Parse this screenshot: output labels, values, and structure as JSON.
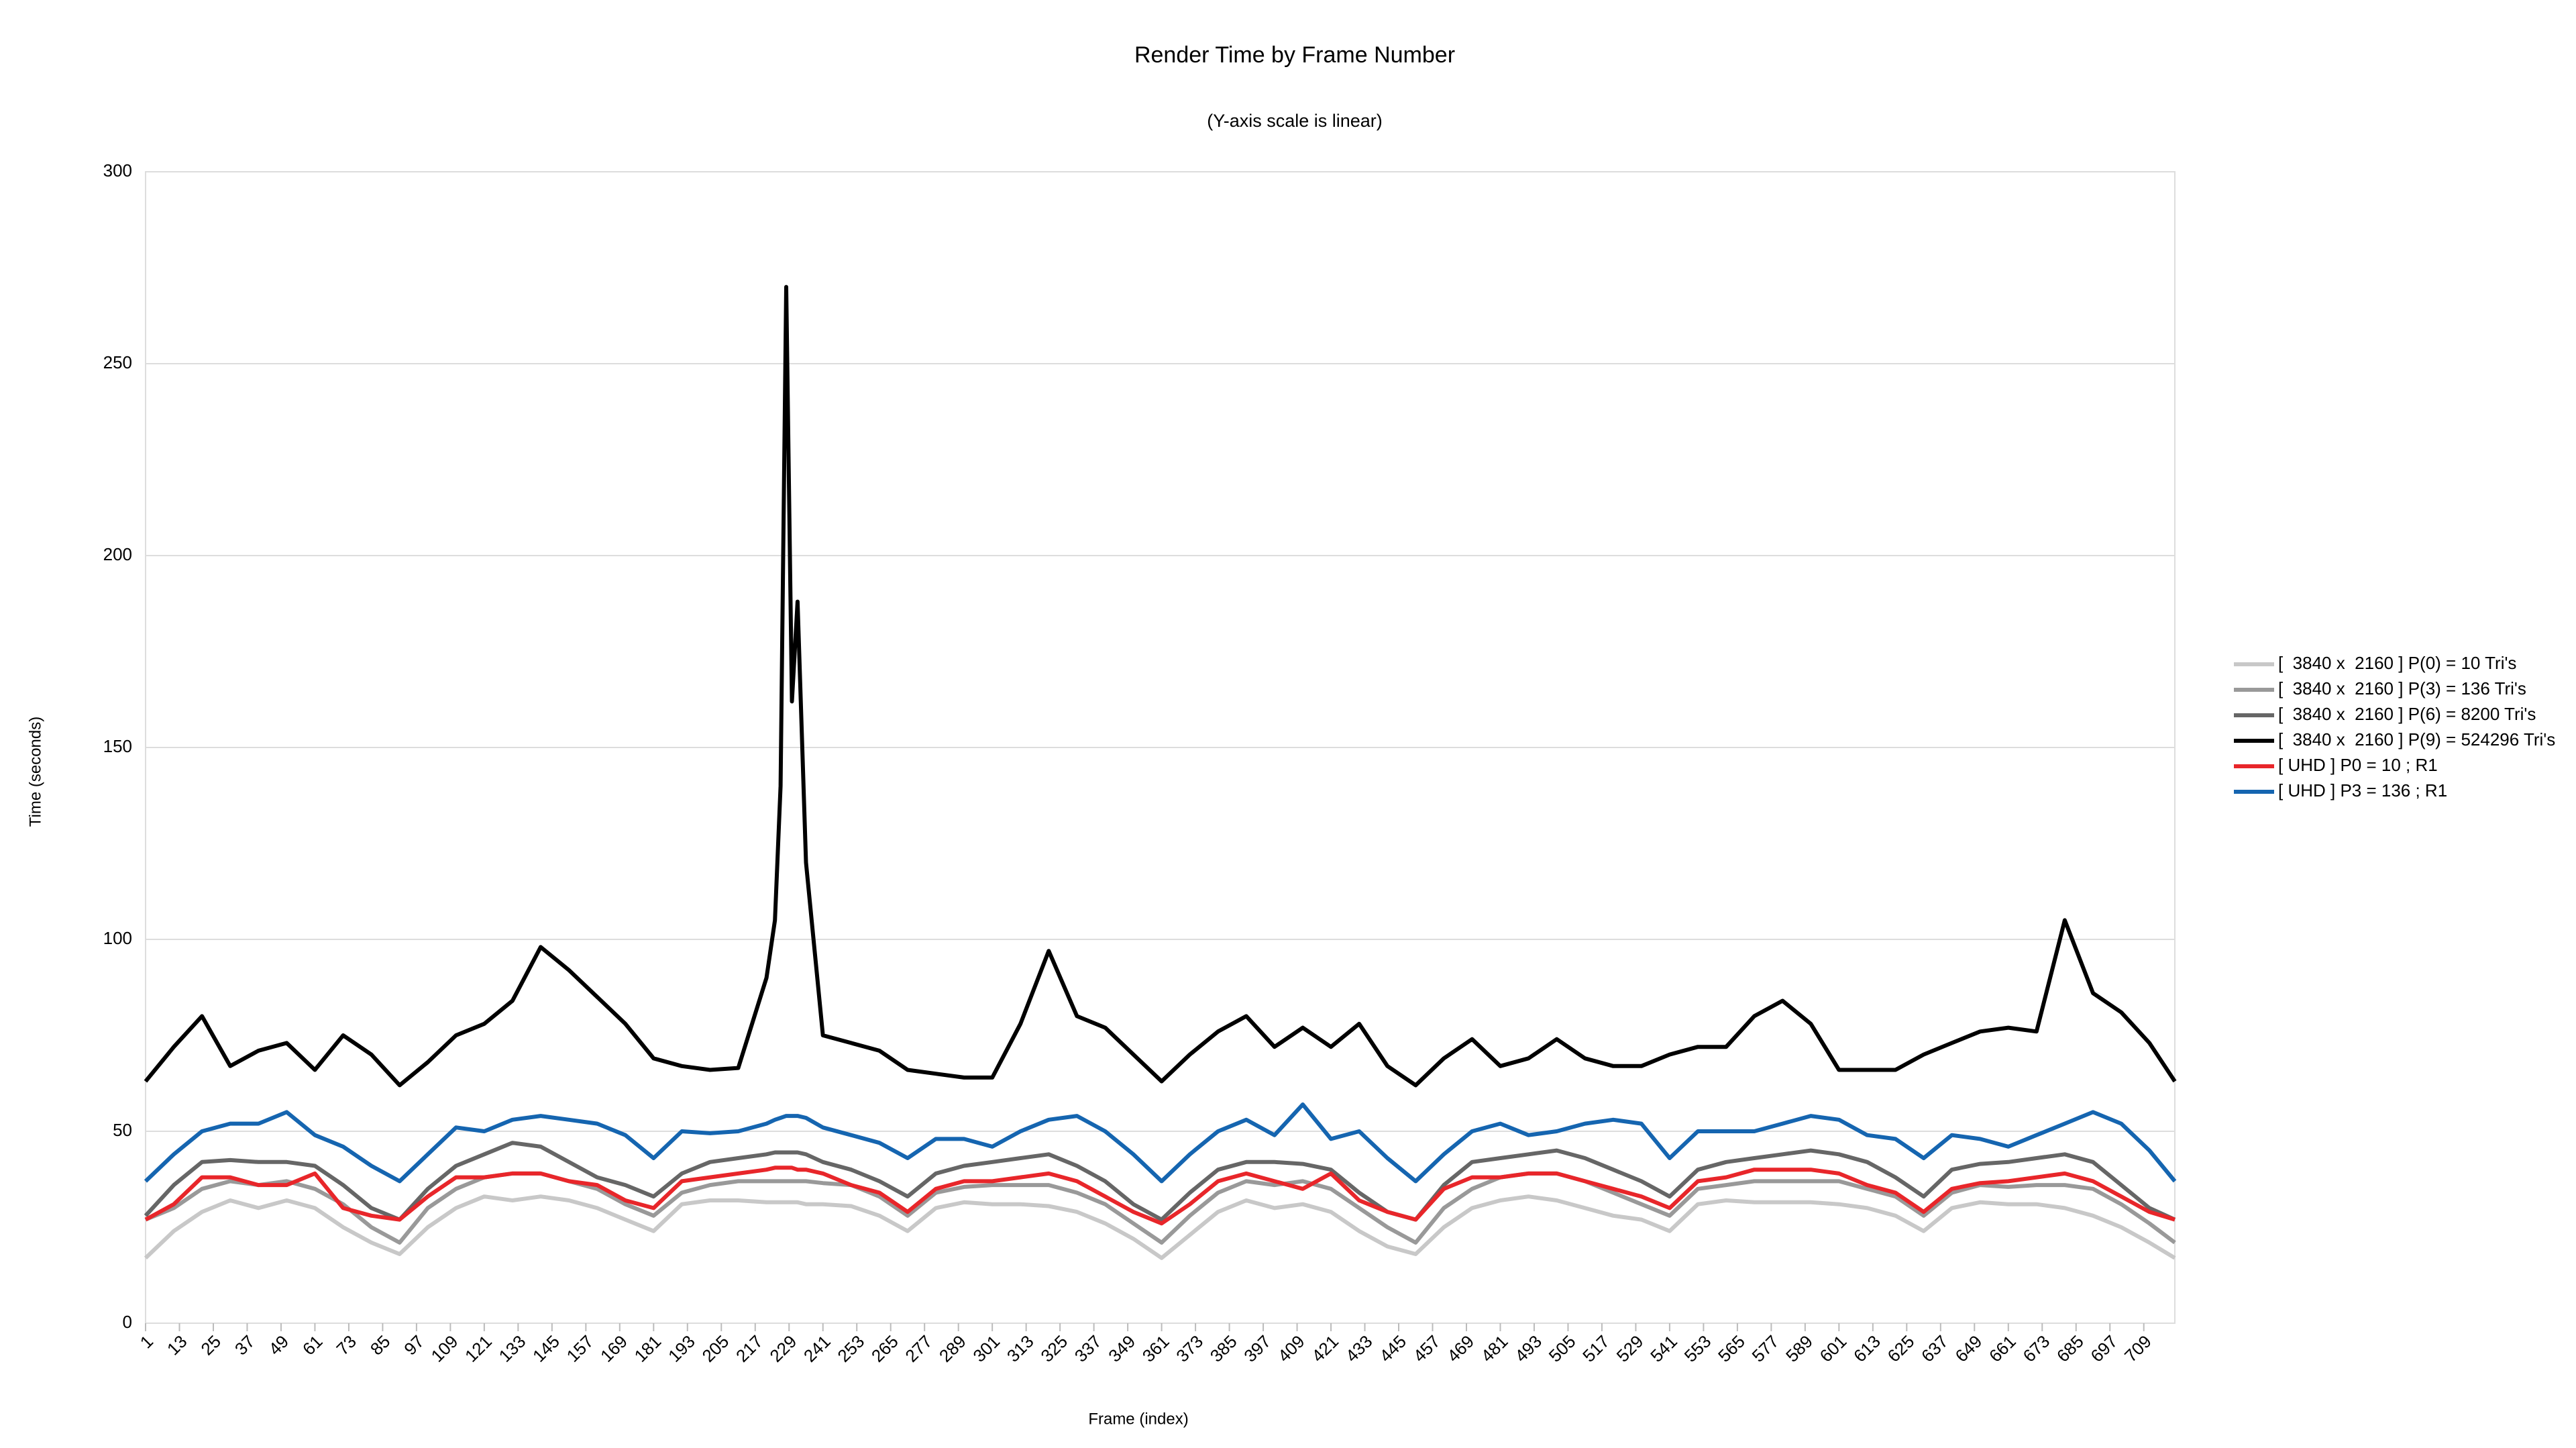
{
  "chart_data": {
    "type": "line",
    "title": "Render Time by Frame Number",
    "subtitle": "(Y-axis scale is linear)",
    "x_label": "Frame (index)",
    "y_label": "Time (seconds)",
    "grid": true,
    "legend": "right",
    "xlim": [
      1,
      720
    ],
    "ylim": [
      0,
      300
    ],
    "yticks": [
      0,
      50,
      100,
      150,
      200,
      250,
      300
    ],
    "xticks": [
      1,
      13,
      25,
      37,
      49,
      61,
      73,
      85,
      97,
      109,
      121,
      133,
      145,
      157,
      169,
      181,
      193,
      205,
      217,
      229,
      241,
      253,
      265,
      277,
      289,
      301,
      313,
      325,
      337,
      349,
      361,
      373,
      385,
      397,
      409,
      421,
      433,
      445,
      457,
      469,
      481,
      493,
      505,
      517,
      529,
      541,
      553,
      565,
      577,
      589,
      601,
      613,
      625,
      637,
      649,
      661,
      673,
      685,
      697,
      709
    ],
    "x": [
      1,
      11,
      21,
      31,
      41,
      51,
      61,
      71,
      81,
      91,
      101,
      111,
      121,
      131,
      141,
      151,
      161,
      171,
      181,
      191,
      201,
      211,
      221,
      224,
      226,
      228,
      230,
      232,
      235,
      241,
      251,
      261,
      271,
      281,
      291,
      301,
      311,
      321,
      331,
      341,
      351,
      361,
      371,
      381,
      391,
      401,
      411,
      421,
      431,
      441,
      451,
      461,
      471,
      481,
      491,
      501,
      511,
      521,
      531,
      541,
      551,
      561,
      571,
      581,
      591,
      601,
      611,
      621,
      631,
      641,
      651,
      661,
      671,
      681,
      691,
      701,
      711,
      720
    ],
    "series": [
      {
        "name": "[  3840 x  2160 ] P(0) = 10 Tri's",
        "color": "#c8c8c8",
        "values": [
          17,
          24,
          29,
          32,
          30,
          32,
          30,
          25,
          21,
          18,
          25,
          30,
          33,
          32,
          33,
          32,
          30,
          27,
          24,
          31,
          32,
          32,
          31.5,
          31.5,
          31.5,
          31.5,
          31.5,
          31.5,
          31,
          31,
          30.5,
          28,
          24,
          30,
          31.5,
          31,
          31,
          30.5,
          29,
          26,
          22,
          17,
          23,
          29,
          32,
          30,
          31,
          29,
          24,
          20,
          18,
          25,
          30,
          32,
          33,
          32,
          30,
          28,
          27,
          24,
          31,
          32,
          31.5,
          31.5,
          31.5,
          31,
          30,
          28,
          24,
          30,
          31.5,
          31,
          31,
          30,
          28,
          25,
          21,
          17
        ]
      },
      {
        "name": "[  3840 x  2160 ] P(3) = 136 Tri's",
        "color": "#999999",
        "values": [
          27,
          30,
          35,
          37,
          36,
          37,
          35,
          31,
          25,
          21,
          30,
          35,
          38,
          39,
          39,
          37,
          35,
          31,
          28,
          34,
          36,
          37,
          37,
          37,
          37,
          37,
          37,
          37,
          37,
          36.5,
          36,
          33,
          28,
          34,
          35.5,
          36,
          36,
          36,
          34,
          31,
          26,
          21,
          28,
          34,
          37,
          36,
          37,
          35,
          30,
          25,
          21,
          30,
          35,
          38,
          39,
          39,
          37,
          34,
          31,
          28,
          35,
          36,
          37,
          37,
          37,
          37,
          35,
          33,
          28,
          34,
          36,
          35.5,
          36,
          36,
          35,
          31,
          26,
          21
        ]
      },
      {
        "name": "[  3840 x  2160 ] P(6) = 8200 Tri's",
        "color": "#666666",
        "values": [
          28,
          36,
          42,
          42.5,
          42,
          42,
          41,
          36,
          30,
          27,
          35,
          41,
          44,
          47,
          46,
          42,
          38,
          36,
          33,
          39,
          42,
          43,
          44,
          44.5,
          44.5,
          44.5,
          44.5,
          44.5,
          44,
          42,
          40,
          37,
          33,
          39,
          41,
          42,
          43,
          44,
          41,
          37,
          31,
          27,
          34,
          40,
          42,
          42,
          41.5,
          40,
          34,
          29,
          27,
          36,
          42,
          43,
          44,
          45,
          43,
          40,
          37,
          33,
          40,
          42,
          43,
          44,
          45,
          44,
          42,
          38,
          33,
          40,
          41.5,
          42,
          43,
          44,
          42,
          36,
          30,
          27
        ]
      },
      {
        "name": "[  3840 x  2160 ] P(9) = 524296 Tri's",
        "color": "#000000",
        "values": [
          63,
          72,
          80,
          67,
          71,
          73,
          66,
          75,
          70,
          62,
          68,
          75,
          78,
          84,
          98,
          92,
          85,
          78,
          69,
          67,
          66,
          66.5,
          90,
          105,
          140,
          270,
          162,
          188,
          120,
          75,
          73,
          71,
          66,
          65,
          64,
          64,
          78,
          97,
          80,
          77,
          70,
          63,
          70,
          76,
          80,
          72,
          77,
          72,
          78,
          67,
          62,
          69,
          74,
          67,
          69,
          74,
          69,
          67,
          67,
          70,
          72,
          72,
          80,
          84,
          78,
          66,
          66,
          66,
          70,
          73,
          76,
          77,
          76,
          105,
          86,
          81,
          73,
          63
        ]
      },
      {
        "name": "[ UHD ] P0 = 10 ; R1",
        "color": "#e8262a",
        "values": [
          27,
          31,
          38,
          38,
          36,
          36,
          39,
          30,
          28,
          27,
          33,
          38,
          38,
          39,
          39,
          37,
          36,
          32,
          30,
          37,
          38,
          39,
          40,
          40.5,
          40.5,
          40.5,
          40.5,
          40,
          40,
          39,
          36,
          34,
          29,
          35,
          37,
          37,
          38,
          39,
          37,
          33,
          29,
          26,
          31,
          37,
          39,
          37,
          35,
          39,
          32,
          29,
          27,
          35,
          38,
          38,
          39,
          39,
          37,
          35,
          33,
          30,
          37,
          38,
          40,
          40,
          40,
          39,
          36,
          34,
          29,
          35,
          36.5,
          37,
          38,
          39,
          37,
          33,
          29,
          27
        ]
      },
      {
        "name": "[ UHD ] P3 = 136 ; R1",
        "color": "#1565b0",
        "values": [
          37,
          44,
          50,
          52,
          52,
          55,
          49,
          46,
          41,
          37,
          44,
          51,
          50,
          53,
          54,
          53,
          52,
          49,
          43,
          50,
          49.5,
          50,
          52,
          53,
          53.5,
          54,
          54,
          54,
          53.5,
          51,
          49,
          47,
          43,
          48,
          48,
          46,
          50,
          53,
          54,
          50,
          44,
          37,
          44,
          50,
          53,
          49,
          57,
          48,
          50,
          43,
          37,
          44,
          50,
          52,
          49,
          50,
          52,
          53,
          52,
          43,
          50,
          50,
          50,
          52,
          54,
          53,
          49,
          48,
          43,
          49,
          48,
          46,
          49,
          52,
          55,
          52,
          45,
          37
        ]
      }
    ]
  }
}
